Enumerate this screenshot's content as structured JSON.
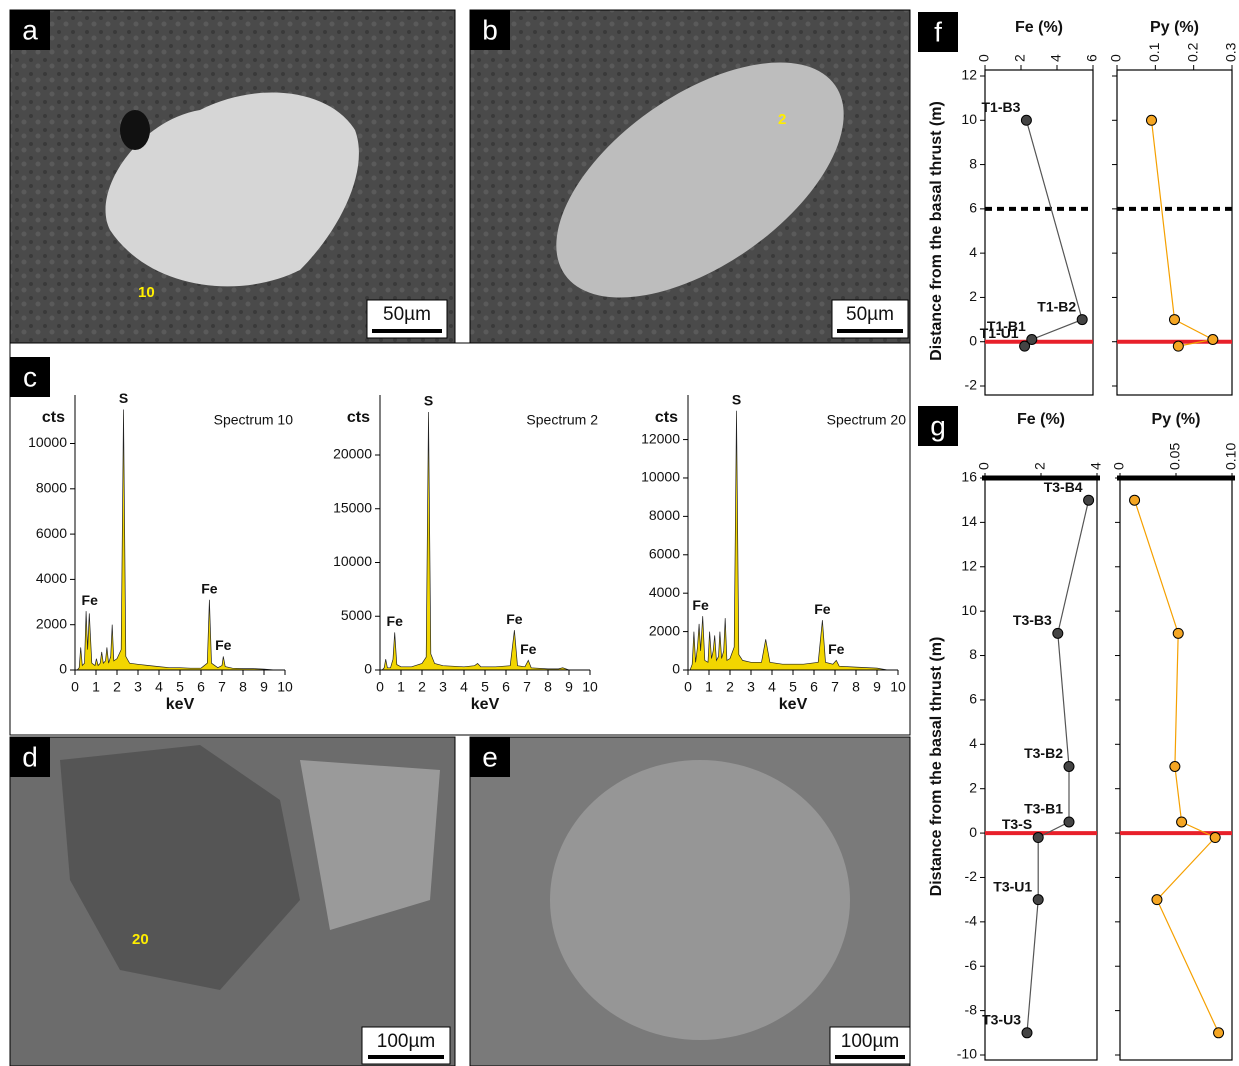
{
  "panels": [
    {
      "label": "a",
      "scale_bar": "50µm",
      "spot": "10"
    },
    {
      "label": "b",
      "scale_bar": "50µm",
      "spot": "2"
    },
    {
      "label": "c"
    },
    {
      "label": "d",
      "scale_bar": "100µm",
      "spot": "20"
    },
    {
      "label": "e",
      "scale_bar": "100µm"
    },
    {
      "label": "f"
    },
    {
      "label": "g"
    }
  ],
  "chart_data": [
    {
      "type": "area",
      "title": "Spectrum 10",
      "y_label": "cts",
      "x_label": "keV",
      "color": "#f2d600",
      "x": [
        0.1,
        0.2,
        0.27,
        0.35,
        0.45,
        0.53,
        0.6,
        0.68,
        0.8,
        0.95,
        1.02,
        1.1,
        1.2,
        1.27,
        1.35,
        1.45,
        1.52,
        1.6,
        1.7,
        1.77,
        1.85,
        2.0,
        2.2,
        2.31,
        2.42,
        2.6,
        3.0,
        3.5,
        4.0,
        4.5,
        5.0,
        5.5,
        6.0,
        6.3,
        6.4,
        6.5,
        6.8,
        7.0,
        7.06,
        7.15,
        7.5,
        8.0,
        8.5,
        9.0,
        9.5
      ],
      "values": [
        0,
        100,
        1000,
        200,
        300,
        2600,
        900,
        2500,
        300,
        200,
        500,
        200,
        300,
        800,
        300,
        400,
        1000,
        300,
        600,
        2000,
        400,
        500,
        900,
        11500,
        600,
        300,
        250,
        200,
        150,
        100,
        100,
        80,
        80,
        300,
        3100,
        300,
        100,
        200,
        600,
        150,
        80,
        60,
        60,
        40,
        0
      ],
      "annotations": [
        {
          "text": "S",
          "x": 2.31,
          "y": 11500
        },
        {
          "text": "Fe",
          "x": 0.7,
          "y": 2600
        },
        {
          "text": "Fe",
          "x": 6.4,
          "y": 3100
        },
        {
          "text": "Fe",
          "x": 7.06,
          "y": 600
        }
      ],
      "xlim": [
        0,
        10
      ],
      "xticks": [
        0,
        1,
        2,
        3,
        4,
        5,
        6,
        7,
        8,
        9,
        10
      ],
      "ylim": [
        0,
        11700
      ],
      "yticks": [
        0,
        2000,
        4000,
        6000,
        8000,
        10000
      ]
    },
    {
      "type": "area",
      "title": "Spectrum 2",
      "y_label": "cts",
      "x_label": "keV",
      "color": "#f2d600",
      "x": [
        0.1,
        0.2,
        0.27,
        0.35,
        0.5,
        0.62,
        0.7,
        0.8,
        1.0,
        1.5,
        2.0,
        2.2,
        2.31,
        2.42,
        2.6,
        3.0,
        4.0,
        4.5,
        4.65,
        4.8,
        5.5,
        6.2,
        6.4,
        6.55,
        6.9,
        7.06,
        7.2,
        8.0,
        8.5,
        8.7,
        9.0
      ],
      "values": [
        0,
        200,
        1000,
        200,
        200,
        1000,
        3500,
        500,
        300,
        300,
        600,
        1200,
        24000,
        1500,
        600,
        400,
        300,
        400,
        600,
        300,
        300,
        400,
        3700,
        400,
        300,
        900,
        200,
        100,
        100,
        200,
        0
      ],
      "annotations": [
        {
          "text": "S",
          "x": 2.31,
          "y": 24000
        },
        {
          "text": "Fe",
          "x": 0.7,
          "y": 3500
        },
        {
          "text": "Fe",
          "x": 6.4,
          "y": 3700
        },
        {
          "text": "Fe",
          "x": 7.06,
          "y": 900
        }
      ],
      "xlim": [
        0,
        10
      ],
      "xticks": [
        0,
        1,
        2,
        3,
        4,
        5,
        6,
        7,
        8,
        9,
        10
      ],
      "ylim": [
        0,
        24650
      ],
      "yticks": [
        0,
        5000,
        10000,
        15000,
        20000
      ]
    },
    {
      "type": "area",
      "title": "Spectrum 20",
      "y_label": "cts",
      "x_label": "keV",
      "color": "#f2d600",
      "x": [
        0.1,
        0.2,
        0.28,
        0.36,
        0.45,
        0.53,
        0.6,
        0.7,
        0.8,
        0.95,
        1.03,
        1.12,
        1.2,
        1.27,
        1.35,
        1.45,
        1.52,
        1.6,
        1.7,
        1.77,
        1.85,
        2.0,
        2.2,
        2.31,
        2.42,
        2.6,
        3.0,
        3.5,
        3.7,
        3.9,
        4.5,
        5.5,
        6.2,
        6.4,
        6.55,
        6.9,
        7.06,
        7.2,
        8.0,
        9.0,
        9.5
      ],
      "values": [
        0,
        300,
        2000,
        400,
        1200,
        2400,
        1000,
        2800,
        500,
        400,
        2000,
        600,
        1000,
        1800,
        500,
        700,
        2000,
        600,
        1000,
        2700,
        500,
        600,
        1200,
        13500,
        800,
        500,
        400,
        400,
        1600,
        400,
        300,
        300,
        400,
        2600,
        400,
        300,
        500,
        200,
        150,
        100,
        0
      ],
      "annotations": [
        {
          "text": "S",
          "x": 2.31,
          "y": 13500
        },
        {
          "text": "Fe",
          "x": 0.6,
          "y": 2800
        },
        {
          "text": "Fe",
          "x": 6.4,
          "y": 2600
        },
        {
          "text": "Fe",
          "x": 7.06,
          "y": 500
        }
      ],
      "xlim": [
        0,
        10
      ],
      "xticks": [
        0,
        1,
        2,
        3,
        4,
        5,
        6,
        7,
        8,
        9,
        10
      ],
      "ylim": [
        0,
        13800
      ],
      "yticks": [
        0,
        2000,
        4000,
        6000,
        8000,
        10000,
        12000
      ]
    },
    {
      "type": "line",
      "x_label": "Fe (%)",
      "y_label": "Distance from the basal thrust (m)",
      "color": "#555555",
      "marker_color": "#444444",
      "x": [
        2.3,
        5.4,
        2.6,
        2.2
      ],
      "y": [
        10,
        1,
        0.1,
        -0.2
      ],
      "point_labels": [
        "T1-B3",
        "T1-B2",
        "T1-B1",
        "T1-U1"
      ],
      "xlim": [
        0,
        6
      ],
      "xticks": [
        0,
        2,
        4,
        6
      ],
      "ylim": [
        -2,
        12
      ],
      "yticks": [
        -2,
        0,
        2,
        4,
        6,
        8,
        10,
        12
      ],
      "show_ytick_labels": true,
      "hlines": [
        {
          "value": 6,
          "color": "#000000",
          "dashed": true
        },
        {
          "value": 0,
          "color": "#e8202a",
          "dashed": false
        }
      ]
    },
    {
      "type": "line",
      "x_label": "Py (%)",
      "color": "#f5a000",
      "marker_color": "#f5a623",
      "x": [
        0.09,
        0.15,
        0.25,
        0.16
      ],
      "y": [
        10,
        1,
        0.1,
        -0.2
      ],
      "xlim": [
        0,
        0.3
      ],
      "xticks": [
        0,
        0.1,
        0.2,
        0.3
      ],
      "ylim": [
        -2,
        12
      ],
      "yticks": [
        -2,
        0,
        2,
        4,
        6,
        8,
        10,
        12
      ],
      "show_ytick_labels": false,
      "hlines": [
        {
          "value": 6,
          "color": "#000000",
          "dashed": true
        },
        {
          "value": 0,
          "color": "#e8202a",
          "dashed": false
        }
      ]
    },
    {
      "type": "line",
      "x_label": "Fe (%)",
      "y_label": "Distance from the basal thrust (m)",
      "color": "#555555",
      "marker_color": "#444444",
      "x": [
        3.7,
        2.6,
        3.0,
        3.0,
        1.9,
        1.9,
        1.5
      ],
      "y": [
        15,
        9,
        3,
        0.5,
        -0.2,
        -3,
        -9
      ],
      "point_labels": [
        "T3-B4",
        "T3-B3",
        "T3-B2",
        "T3-B1",
        "T3-S",
        "T3-U1",
        "T3-U3"
      ],
      "xlim": [
        0,
        4
      ],
      "xticks": [
        0,
        2,
        4
      ],
      "ylim": [
        -10,
        16
      ],
      "yticks": [
        -10,
        -8,
        -6,
        -4,
        -2,
        0,
        2,
        4,
        6,
        8,
        10,
        12,
        14,
        16
      ],
      "show_ytick_labels": true,
      "bold_top": true,
      "hlines": [
        {
          "value": 0,
          "color": "#e8202a",
          "dashed": false
        }
      ]
    },
    {
      "type": "line",
      "x_label": "Py (%)",
      "color": "#f5a000",
      "marker_color": "#f5a623",
      "x": [
        0.013,
        0.052,
        0.049,
        0.055,
        0.085,
        0.033,
        0.088
      ],
      "y": [
        15,
        9,
        3,
        0.5,
        -0.2,
        -3,
        -9
      ],
      "xlim": [
        0,
        0.1
      ],
      "xticks": [
        0,
        0.05,
        {
          "value": 0.1,
          "label": "0.10"
        }
      ],
      "ylim": [
        -10,
        16
      ],
      "yticks": [
        -10,
        -8,
        -6,
        -4,
        -2,
        0,
        2,
        4,
        6,
        8,
        10,
        12,
        14,
        16
      ],
      "show_ytick_labels": false,
      "bold_top": true,
      "hlines": [
        {
          "value": 0,
          "color": "#e8202a",
          "dashed": false
        }
      ]
    }
  ]
}
